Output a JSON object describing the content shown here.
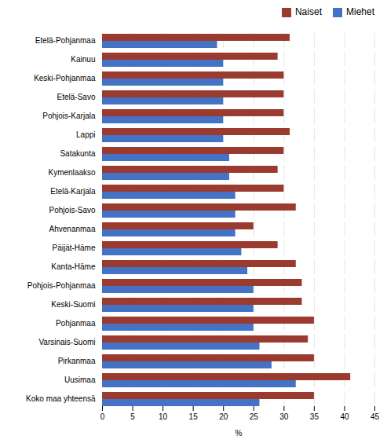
{
  "chart_data": {
    "type": "bar",
    "orientation": "horizontal",
    "categories": [
      "Etelä-Pohjanmaa",
      "Kainuu",
      "Keski-Pohjanmaa",
      "Etelä-Savo",
      "Pohjois-Karjala",
      "Lappi",
      "Satakunta",
      "Kymenlaakso",
      "Etelä-Karjala",
      "Pohjois-Savo",
      "Ahvenanmaa",
      "Päijät-Häme",
      "Kanta-Häme",
      "Pohjois-Pohjanmaa",
      "Keski-Suomi",
      "Pohjanmaa",
      "Varsinais-Suomi",
      "Pirkanmaa",
      "Uusimaa",
      "Koko maa yhteensä"
    ],
    "series": [
      {
        "name": "Naiset",
        "color": "#9B3A2E",
        "values": [
          31,
          29,
          30,
          30,
          30,
          31,
          30,
          29,
          30,
          32,
          25,
          29,
          32,
          33,
          33,
          35,
          34,
          35,
          41,
          35
        ]
      },
      {
        "name": "Miehet",
        "color": "#4472C4",
        "values": [
          19,
          20,
          20,
          20,
          20,
          20,
          21,
          21,
          22,
          22,
          22,
          23,
          24,
          25,
          25,
          25,
          26,
          28,
          32,
          26
        ]
      }
    ],
    "xlabel": "%",
    "xlim": [
      0,
      45
    ],
    "xticks": [
      0,
      5,
      10,
      15,
      20,
      25,
      30,
      35,
      40,
      45
    ],
    "grid": true,
    "legend": "upper right"
  }
}
